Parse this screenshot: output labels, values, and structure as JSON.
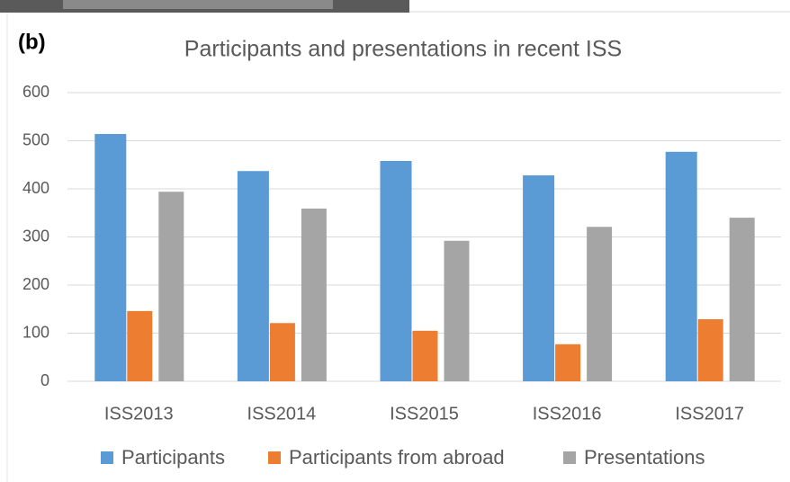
{
  "panel_label": "(b)",
  "chart_data": {
    "type": "bar",
    "title": "Participants and presentations in recent ISS",
    "categories": [
      "ISS2013",
      "ISS2014",
      "ISS2015",
      "ISS2016",
      "ISS2017"
    ],
    "series": [
      {
        "name": "Participants",
        "color": "#5b9bd5",
        "values": [
          514,
          437,
          458,
          428,
          477
        ]
      },
      {
        "name": "Participants from abroad",
        "color": "#ed7d31",
        "values": [
          146,
          121,
          105,
          77,
          129
        ]
      },
      {
        "name": "Presentations",
        "color": "#a5a5a5",
        "values": [
          394,
          359,
          292,
          321,
          340
        ]
      }
    ],
    "ylim": [
      0,
      600
    ],
    "yticks": [
      0,
      100,
      200,
      300,
      400,
      500,
      600
    ],
    "grid": true,
    "legend": "bottom"
  }
}
